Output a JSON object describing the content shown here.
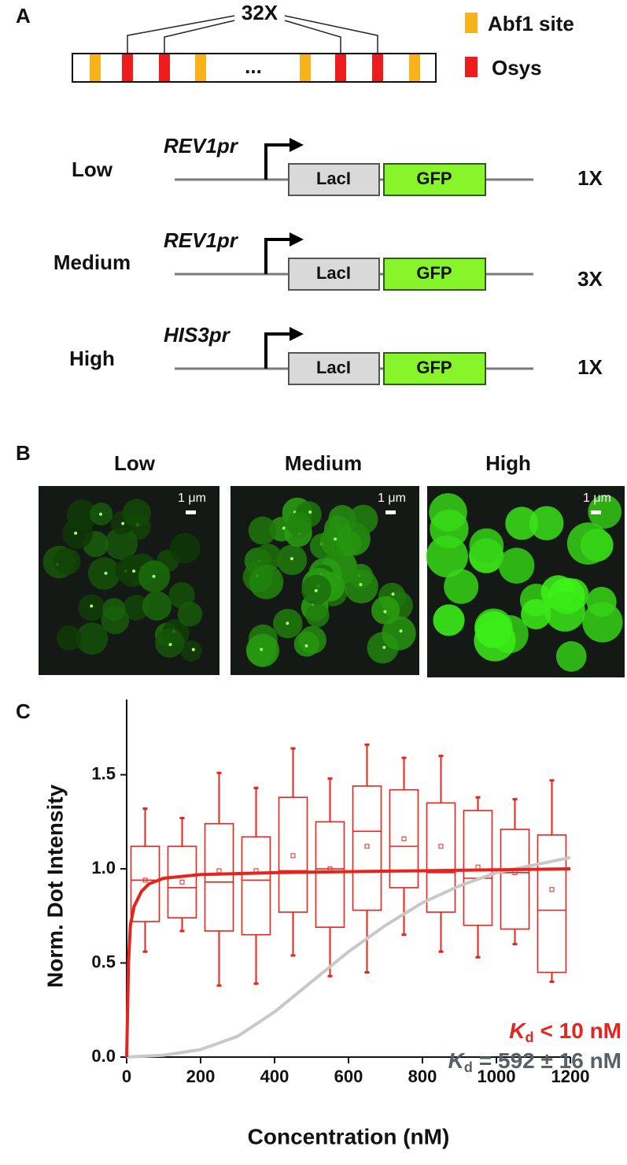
{
  "panel_labels": [
    "A",
    "B",
    "C"
  ],
  "array": {
    "repeat": "32X",
    "ellipsis": "...",
    "legend": [
      {
        "label": "Abf1 site",
        "color": "#f8b31c"
      },
      {
        "label": "Osys",
        "color": "#ee1c1c"
      }
    ]
  },
  "constructs": [
    {
      "level": "Low",
      "promoter": "REV1pr",
      "genes": [
        "LacI",
        "GFP"
      ],
      "copies": "1X"
    },
    {
      "level": "Medium",
      "promoter": "REV1pr",
      "genes": [
        "LacI",
        "GFP"
      ],
      "copies": "3X"
    },
    {
      "level": "High",
      "promoter": "HIS3pr",
      "genes": [
        "LacI",
        "GFP"
      ],
      "copies": "1X"
    }
  ],
  "images": {
    "titles": [
      "Low",
      "Medium",
      "High"
    ],
    "scale_bar": "1 μm"
  },
  "chart_data": {
    "type": "box",
    "xlabel": "Concentration (nM)",
    "ylabel": "Norm. Dot Intensity",
    "xlim": [
      0,
      1200
    ],
    "xticks": [
      0,
      200,
      400,
      600,
      800,
      1000,
      1200
    ],
    "ylim": [
      0,
      1.9
    ],
    "yticks": [
      {
        "value": 0,
        "label": "0.0"
      },
      0.5,
      {
        "value": 1,
        "label": "1.0"
      },
      1.5
    ],
    "color": "#e8231b",
    "boxes": {
      "x": [
        50,
        150,
        250,
        350,
        450,
        550,
        650,
        750,
        850,
        950,
        1050,
        1150
      ],
      "whisker_low": [
        0.56,
        0.67,
        0.38,
        0.39,
        0.54,
        0.43,
        0.45,
        0.65,
        0.56,
        0.53,
        0.6,
        0.4
      ],
      "q1": [
        0.72,
        0.74,
        0.67,
        0.65,
        0.77,
        0.69,
        0.78,
        0.9,
        0.77,
        0.7,
        0.68,
        0.45
      ],
      "median": [
        0.94,
        0.9,
        0.93,
        0.94,
        0.99,
        1.0,
        1.2,
        1.12,
        0.98,
        0.95,
        0.98,
        0.78
      ],
      "q3": [
        1.12,
        1.12,
        1.24,
        1.17,
        1.38,
        1.25,
        1.44,
        1.42,
        1.35,
        1.31,
        1.21,
        1.18
      ],
      "whisker_high": [
        1.32,
        1.27,
        1.51,
        1.43,
        1.64,
        1.48,
        1.66,
        1.59,
        1.6,
        1.38,
        1.37,
        1.47
      ],
      "mean": [
        0.94,
        0.93,
        0.99,
        0.99,
        1.07,
        1.0,
        1.12,
        1.16,
        1.12,
        1.01,
        0.98,
        0.89
      ]
    },
    "fits": [
      {
        "color": "#e8231b",
        "x": [
          0,
          5,
          10,
          20,
          40,
          60,
          100,
          200,
          400,
          800,
          1200
        ],
        "values": [
          0,
          0.5,
          0.7,
          0.8,
          0.88,
          0.92,
          0.95,
          0.97,
          0.98,
          0.99,
          1.0
        ]
      },
      {
        "color": "#c8c8c8",
        "x": [
          0,
          100,
          200,
          300,
          400,
          500,
          600,
          700,
          800,
          900,
          1000,
          1100,
          1200
        ],
        "values": [
          0,
          0.01,
          0.04,
          0.11,
          0.24,
          0.4,
          0.56,
          0.7,
          0.82,
          0.91,
          0.98,
          1.02,
          1.06
        ]
      }
    ],
    "annotations": [
      {
        "symbol": "K",
        "subscript": "d",
        "text": "< 10 nM",
        "color": "#e8231b"
      },
      {
        "symbol": "K",
        "subscript": "d",
        "text": "= 592 ± 16 nM",
        "color": "#5a6068"
      }
    ]
  }
}
